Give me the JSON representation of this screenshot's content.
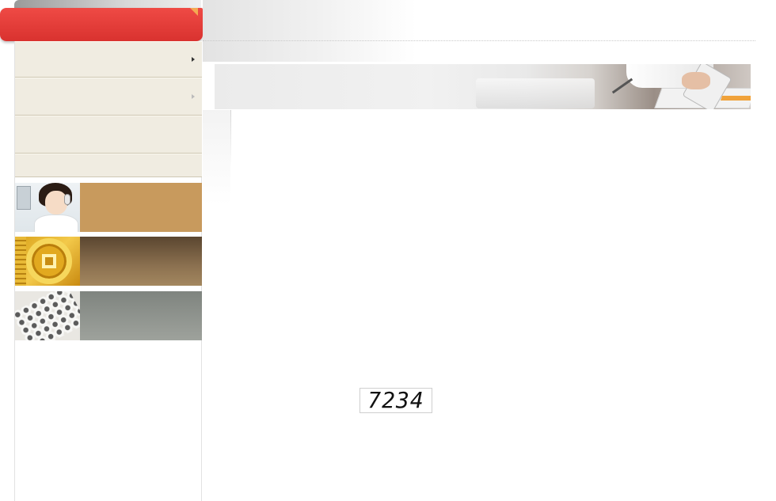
{
  "header": {
    "tab_label": ""
  },
  "sidebar": {
    "items": [
      {
        "label": "",
        "has_arrow": true
      },
      {
        "label": "",
        "has_arrow": true
      },
      {
        "label": "",
        "has_arrow": false
      },
      {
        "label": "",
        "has_arrow": false
      }
    ],
    "promos": [
      {
        "label": "",
        "image": "customer-service-agent",
        "color": "#c89a5d"
      },
      {
        "label": "",
        "image": "gold-coin",
        "color": "#8c7150"
      },
      {
        "label": "",
        "image": "calculator-keypad",
        "color": "#9ea29c"
      }
    ]
  },
  "banner": {
    "image": "office-business-meeting"
  },
  "form": {
    "captcha_text": "7234"
  },
  "colors": {
    "accent": "#d9322f",
    "menu_bg": "#f0ece1"
  }
}
